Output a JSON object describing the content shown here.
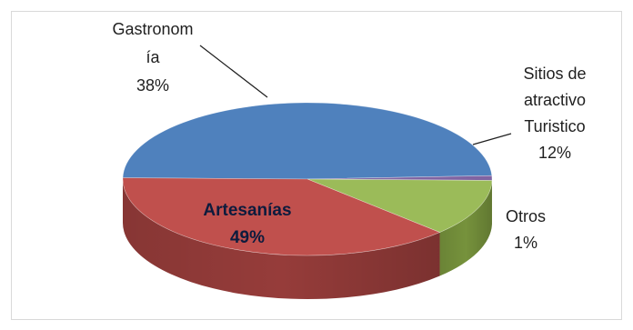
{
  "chart_data": {
    "type": "pie",
    "style": "3d",
    "title": "",
    "slices": [
      {
        "label": "Artesanías",
        "value": 49,
        "pct_text": "49%",
        "color": "#4f81bd",
        "side_color": "#3a659f",
        "label_lines": [
          "Artesanías"
        ]
      },
      {
        "label": "Otros",
        "value": 1,
        "pct_text": "1%",
        "color": "#8064a2",
        "side_color": "#5f4a7b",
        "label_lines": [
          "Otros"
        ]
      },
      {
        "label": "Sitios de atractivo Turistico",
        "value": 12,
        "pct_text": "12%",
        "color": "#9bbb59",
        "side_color": "#76923c",
        "label_lines": [
          "Sitios de",
          "atractivo",
          "Turistico"
        ]
      },
      {
        "label": "Gastronomía",
        "value": 38,
        "pct_text": "38%",
        "color": "#c0504d",
        "side_color": "#963c3a",
        "label_lines": [
          "Gastronom",
          "ía"
        ]
      }
    ]
  }
}
